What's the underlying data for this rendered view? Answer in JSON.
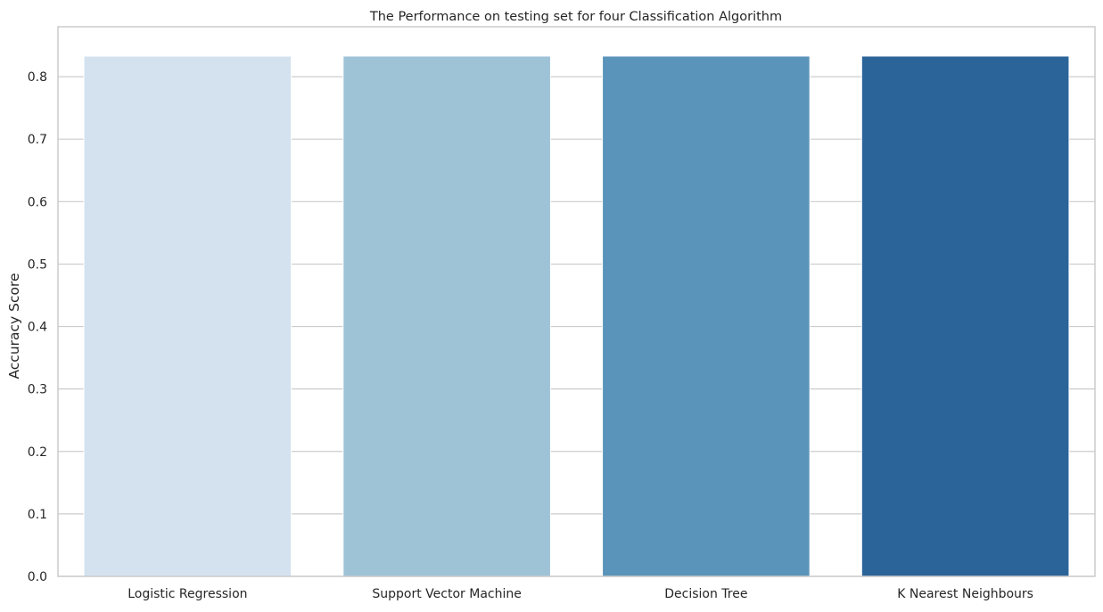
{
  "chart_data": {
    "type": "bar",
    "title": "The Performance on testing set for four Classification Algorithm",
    "xlabel": "",
    "ylabel": "Accuracy Score",
    "categories": [
      "Logistic Regression",
      "Support Vector Machine",
      "Decision Tree",
      "K Nearest Neighbours"
    ],
    "values": [
      0.833,
      0.833,
      0.833,
      0.833
    ],
    "colors": [
      "#d4e2ef",
      "#9ec2d6",
      "#5b94ba",
      "#2b6499"
    ],
    "ylim": [
      0,
      0.88
    ],
    "yticks": [
      0.0,
      0.1,
      0.2,
      0.3,
      0.4,
      0.5,
      0.6,
      0.7,
      0.8
    ],
    "ytick_labels": [
      "0.0",
      "0.1",
      "0.2",
      "0.3",
      "0.4",
      "0.5",
      "0.6",
      "0.7",
      "0.8"
    ],
    "grid": "horizontal",
    "gridColor": "#cccccc",
    "spineColor": "#cccccc"
  }
}
